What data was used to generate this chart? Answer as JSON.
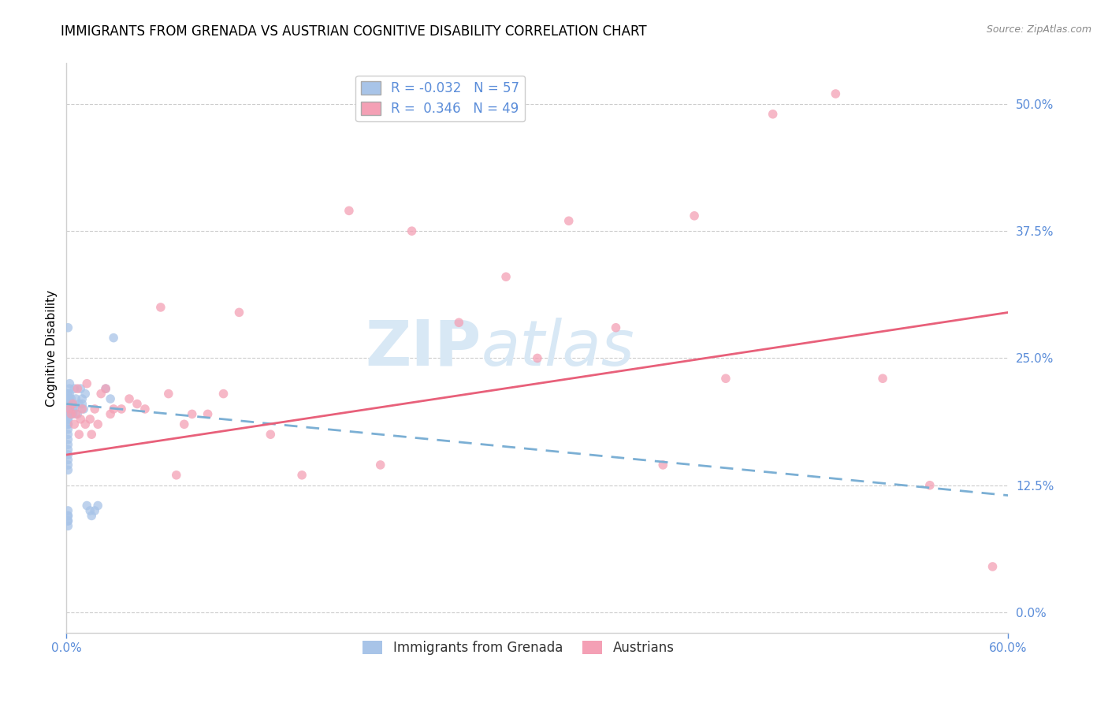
{
  "title": "IMMIGRANTS FROM GRENADA VS AUSTRIAN COGNITIVE DISABILITY CORRELATION CHART",
  "source": "Source: ZipAtlas.com",
  "ylabel_label": "Cognitive Disability",
  "scatter_color_grenada": "#a8c4e8",
  "scatter_color_austrians": "#f4a0b5",
  "trendline_color_grenada": "#7bafd4",
  "trendline_color_austrians": "#e8607a",
  "scatter_alpha": 0.75,
  "scatter_size": 70,
  "xlim": [
    0.0,
    0.6
  ],
  "ylim": [
    -0.02,
    0.54
  ],
  "ytick_positions": [
    0.0,
    0.125,
    0.25,
    0.375,
    0.5
  ],
  "ytick_labels": [
    "0.0%",
    "12.5%",
    "25.0%",
    "37.5%",
    "50.0%"
  ],
  "xtick_positions": [
    0.0,
    0.6
  ],
  "xtick_labels": [
    "0.0%",
    "60.0%"
  ],
  "grid_color": "#cccccc",
  "background_color": "#ffffff",
  "watermark_text": "ZIPatlas",
  "watermark_color": "#d8e8f5",
  "title_fontsize": 12,
  "label_fontsize": 11,
  "tick_fontsize": 11,
  "legend_fontsize": 12,
  "trendline_grenada_x0": 0.0,
  "trendline_grenada_y0": 0.205,
  "trendline_grenada_x1": 0.6,
  "trendline_grenada_y1": 0.115,
  "trendline_austrians_x0": 0.0,
  "trendline_austrians_y0": 0.155,
  "trendline_austrians_x1": 0.6,
  "trendline_austrians_y1": 0.295,
  "scatter_grenada_x": [
    0.001,
    0.001,
    0.001,
    0.001,
    0.001,
    0.001,
    0.001,
    0.001,
    0.001,
    0.001,
    0.001,
    0.001,
    0.001,
    0.001,
    0.001,
    0.001,
    0.001,
    0.001,
    0.001,
    0.001,
    0.001,
    0.002,
    0.002,
    0.002,
    0.002,
    0.003,
    0.003,
    0.003,
    0.004,
    0.004,
    0.005,
    0.005,
    0.006,
    0.007,
    0.008,
    0.009,
    0.01,
    0.01,
    0.011,
    0.012,
    0.013,
    0.015,
    0.016,
    0.018,
    0.02,
    0.025,
    0.028,
    0.03,
    0.001,
    0.001,
    0.001,
    0.001,
    0.001,
    0.001,
    0.001,
    0.001,
    0.001
  ],
  "scatter_grenada_y": [
    0.21,
    0.215,
    0.205,
    0.195,
    0.19,
    0.185,
    0.2,
    0.195,
    0.19,
    0.185,
    0.18,
    0.175,
    0.17,
    0.165,
    0.16,
    0.155,
    0.15,
    0.145,
    0.14,
    0.2,
    0.205,
    0.225,
    0.22,
    0.215,
    0.21,
    0.21,
    0.205,
    0.195,
    0.2,
    0.195,
    0.2,
    0.22,
    0.21,
    0.195,
    0.205,
    0.22,
    0.21,
    0.205,
    0.2,
    0.215,
    0.105,
    0.1,
    0.095,
    0.1,
    0.105,
    0.22,
    0.21,
    0.27,
    0.215,
    0.21,
    0.095,
    0.09,
    0.085,
    0.28,
    0.1,
    0.095,
    0.09
  ],
  "scatter_austrians_x": [
    0.002,
    0.003,
    0.004,
    0.005,
    0.006,
    0.007,
    0.008,
    0.009,
    0.01,
    0.012,
    0.013,
    0.015,
    0.016,
    0.018,
    0.02,
    0.022,
    0.025,
    0.028,
    0.03,
    0.035,
    0.04,
    0.045,
    0.05,
    0.06,
    0.065,
    0.07,
    0.075,
    0.08,
    0.09,
    0.1,
    0.11,
    0.13,
    0.15,
    0.18,
    0.2,
    0.22,
    0.25,
    0.28,
    0.3,
    0.32,
    0.35,
    0.38,
    0.4,
    0.42,
    0.45,
    0.49,
    0.52,
    0.55,
    0.59
  ],
  "scatter_austrians_y": [
    0.2,
    0.195,
    0.205,
    0.185,
    0.195,
    0.22,
    0.175,
    0.19,
    0.2,
    0.185,
    0.225,
    0.19,
    0.175,
    0.2,
    0.185,
    0.215,
    0.22,
    0.195,
    0.2,
    0.2,
    0.21,
    0.205,
    0.2,
    0.3,
    0.215,
    0.135,
    0.185,
    0.195,
    0.195,
    0.215,
    0.295,
    0.175,
    0.135,
    0.395,
    0.145,
    0.375,
    0.285,
    0.33,
    0.25,
    0.385,
    0.28,
    0.145,
    0.39,
    0.23,
    0.49,
    0.51,
    0.23,
    0.125,
    0.045
  ]
}
